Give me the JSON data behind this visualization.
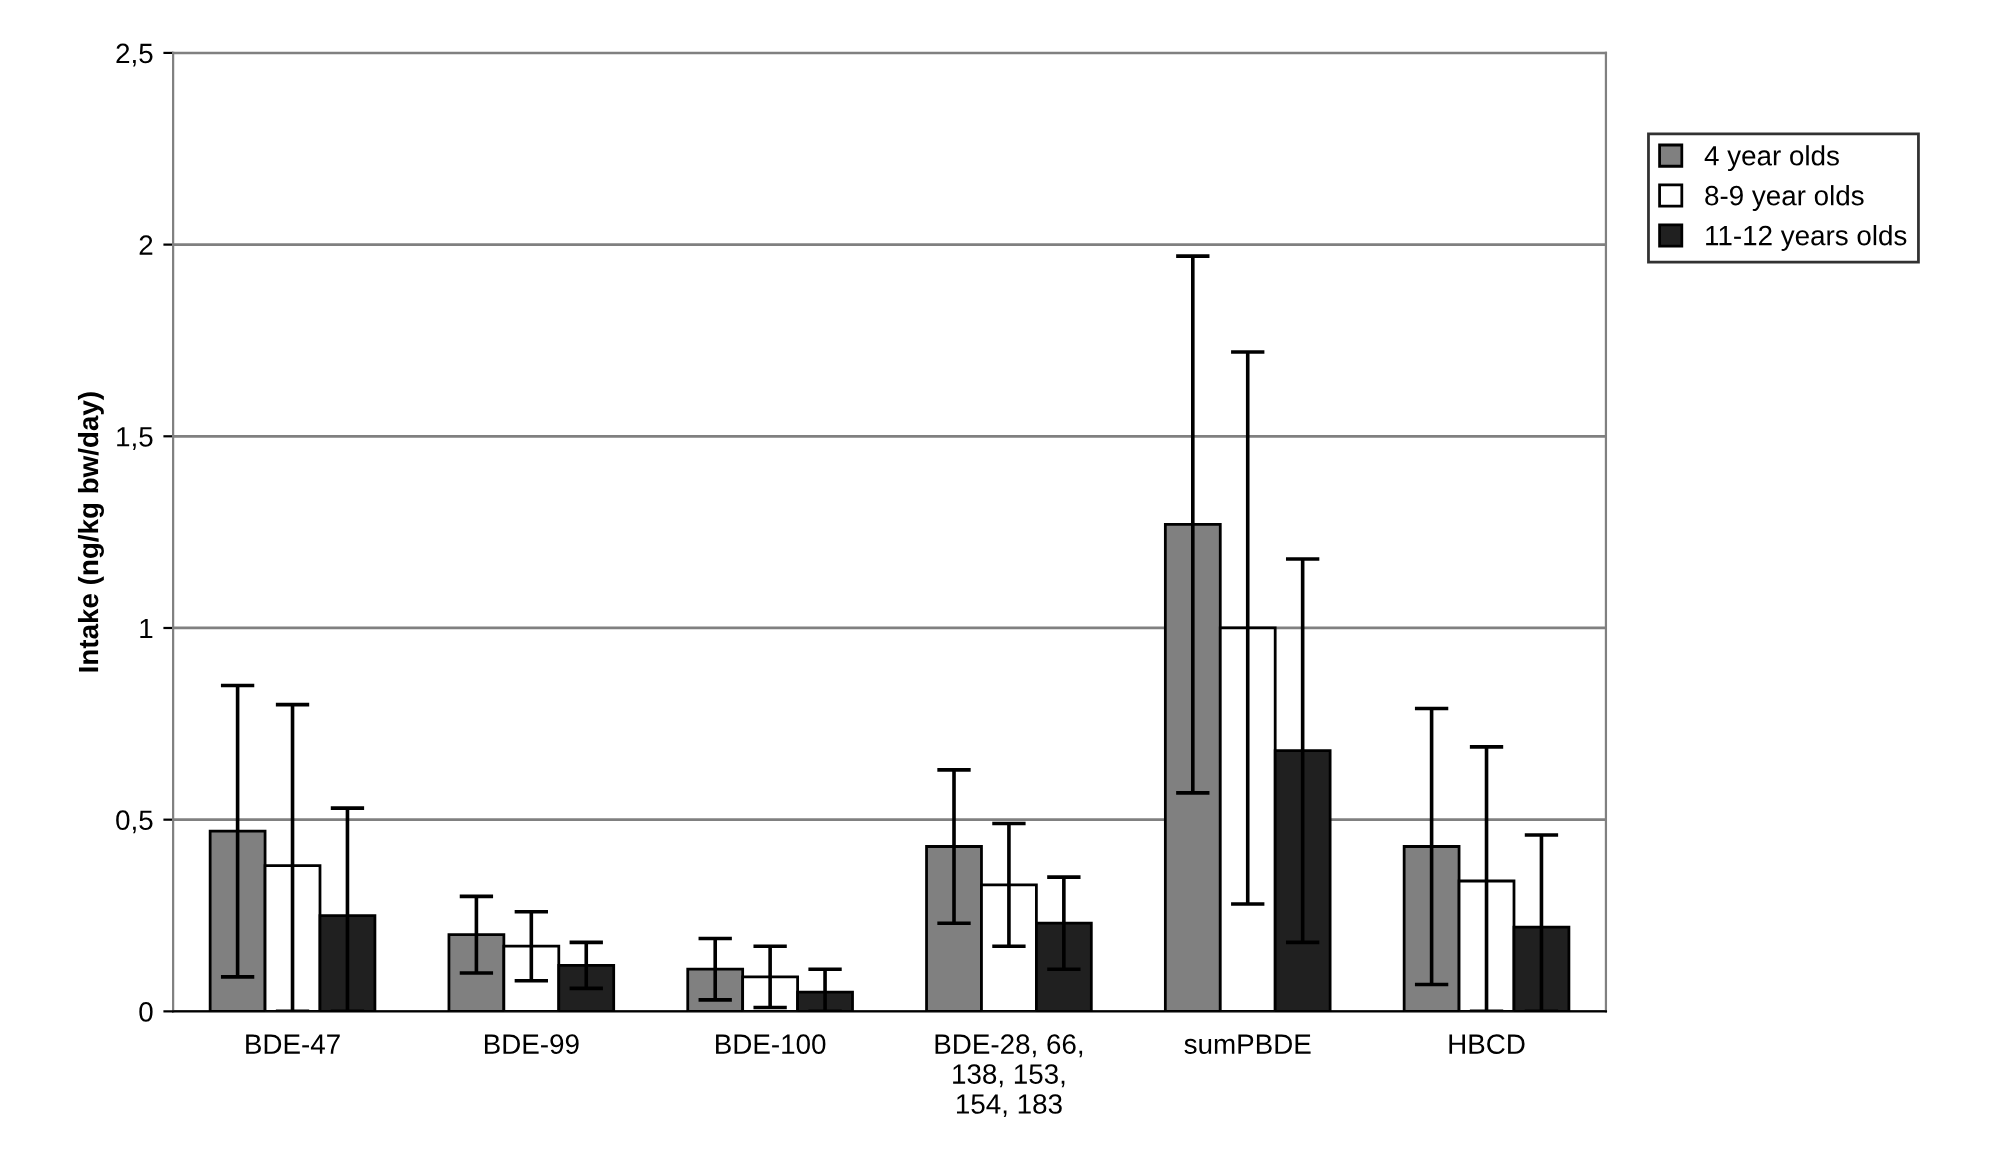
{
  "chart_data": {
    "type": "bar",
    "ylabel": "Intake (ng/kg bw/day)",
    "categories": [
      "BDE-47",
      "BDE-99",
      "BDE-100",
      "BDE-28, 66,\n138, 153,\n154, 183",
      "sumPBDE",
      "HBCD"
    ],
    "series": [
      {
        "name": "4 year olds",
        "color": "#808080",
        "values": [
          0.47,
          0.2,
          0.11,
          0.43,
          1.27,
          0.43
        ],
        "errors": [
          0.38,
          0.1,
          0.08,
          0.2,
          0.7,
          0.36
        ]
      },
      {
        "name": "8-9 year olds",
        "color": "#ffffff",
        "values": [
          0.38,
          0.17,
          0.09,
          0.33,
          1.0,
          0.34
        ],
        "errors": [
          [
            0,
            0.8
          ],
          0.09,
          0.08,
          0.16,
          0.72,
          [
            0,
            0.69
          ]
        ]
      },
      {
        "name": "11-12 years olds",
        "color": "#202020",
        "values": [
          0.25,
          0.12,
          0.05,
          0.23,
          0.68,
          0.22
        ],
        "errors": [
          [
            0,
            0.53
          ],
          0.06,
          [
            0,
            0.11
          ],
          0.12,
          0.5,
          [
            0,
            0.46
          ]
        ]
      }
    ],
    "ylim": [
      0,
      2.5
    ],
    "yticks": [
      0,
      {
        "value": 0.5,
        "label": "0,5"
      },
      1,
      {
        "value": 1.5,
        "label": "1,5"
      },
      2,
      {
        "value": 2.5,
        "label": "2,5"
      }
    ],
    "grid": "y",
    "legend": "right"
  }
}
